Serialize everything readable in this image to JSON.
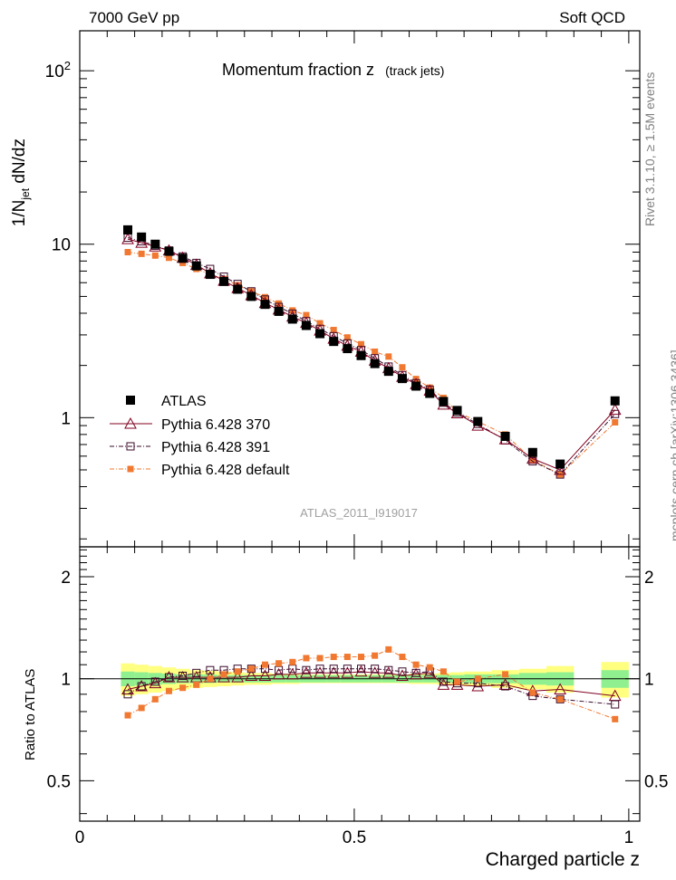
{
  "header": {
    "left": "7000 GeV pp",
    "right": "Soft QCD"
  },
  "side_labels": {
    "rivet": "Rivet 3.1.10, ≥ 1.5M events",
    "mcplots": "mcplots.cern.ch [arXiv:1306.3436]"
  },
  "chart_data": {
    "type": "scatter",
    "title": "Momentum fraction z",
    "subtitle": "(track jets)",
    "watermark": "ATLAS_2011_I919017",
    "xlabel": "Charged particle z",
    "ylabel_main": "1/N_jet dN/dz",
    "ylabel_ratio": "Ratio to ATLAS",
    "xlim": [
      0,
      1.02
    ],
    "ylim_main": [
      0.18,
      170
    ],
    "ylim_ratio": [
      0.38,
      2.45
    ],
    "yscale": "log",
    "x_ticks": [
      "0",
      "0.5",
      "1"
    ],
    "y_ticks_main": [
      "1",
      "10",
      "10^2"
    ],
    "y_ticks_ratio": [
      "0.5",
      "1",
      "2"
    ],
    "legend_position": "lower-left",
    "bins_x": [
      0.0875,
      0.1125,
      0.1375,
      0.1625,
      0.1875,
      0.2125,
      0.2375,
      0.2625,
      0.2875,
      0.3125,
      0.3375,
      0.3625,
      0.3875,
      0.4125,
      0.4375,
      0.4625,
      0.4875,
      0.5125,
      0.5375,
      0.5625,
      0.5875,
      0.6125,
      0.6375,
      0.6625,
      0.6875,
      0.725,
      0.775,
      0.825,
      0.875,
      0.975
    ],
    "band_edges": [
      0.075,
      0.1,
      0.125,
      0.15,
      0.175,
      0.2,
      0.225,
      0.25,
      0.275,
      0.3,
      0.325,
      0.35,
      0.375,
      0.4,
      0.425,
      0.45,
      0.475,
      0.5,
      0.525,
      0.55,
      0.575,
      0.6,
      0.625,
      0.65,
      0.675,
      0.7,
      0.75,
      0.8,
      0.85,
      0.9,
      0.95,
      1.0
    ],
    "band_green_half": [
      0.05,
      0.045,
      0.04,
      0.035,
      0.03,
      0.03,
      0.028,
      0.025,
      0.025,
      0.025,
      0.025,
      0.025,
      0.025,
      0.025,
      0.025,
      0.025,
      0.025,
      0.025,
      0.025,
      0.025,
      0.025,
      0.025,
      0.025,
      0.025,
      0.025,
      0.03,
      0.03,
      0.04,
      0.045,
      0.0,
      0.06
    ],
    "band_yellow_half": [
      0.11,
      0.1,
      0.09,
      0.08,
      0.07,
      0.06,
      0.055,
      0.05,
      0.045,
      0.04,
      0.04,
      0.035,
      0.035,
      0.03,
      0.03,
      0.03,
      0.03,
      0.03,
      0.03,
      0.03,
      0.03,
      0.035,
      0.035,
      0.04,
      0.045,
      0.05,
      0.06,
      0.07,
      0.09,
      0.0,
      0.12
    ],
    "series": [
      {
        "name": "ATLAS",
        "marker": "filled-square",
        "color": "#000000",
        "y": [
          12.1,
          11.0,
          10.0,
          9.1,
          8.3,
          7.5,
          6.7,
          6.1,
          5.5,
          5.0,
          4.5,
          4.1,
          3.7,
          3.4,
          3.05,
          2.75,
          2.5,
          2.28,
          2.05,
          1.85,
          1.68,
          1.52,
          1.38,
          1.24,
          1.1,
          0.95,
          0.78,
          0.63,
          0.54,
          1.25
        ]
      },
      {
        "name": "Pythia 6.428 370",
        "marker": "open-triangle",
        "color": "#800020",
        "line": "solid",
        "y": [
          10.7,
          10.2,
          9.7,
          9.2,
          8.35,
          7.6,
          6.8,
          6.15,
          5.58,
          5.08,
          4.58,
          4.2,
          3.82,
          3.52,
          3.18,
          2.85,
          2.6,
          2.4,
          2.13,
          1.93,
          1.72,
          1.56,
          1.43,
          1.19,
          1.06,
          0.9,
          0.75,
          0.58,
          0.5,
          1.11
        ]
      },
      {
        "name": "Pythia 6.428 391",
        "marker": "open-square",
        "color": "#3a0a2a",
        "line": "dash-dot",
        "y": [
          10.9,
          10.4,
          9.8,
          9.2,
          8.5,
          7.8,
          7.2,
          6.5,
          5.9,
          5.35,
          4.8,
          4.35,
          3.98,
          3.6,
          3.25,
          2.95,
          2.68,
          2.45,
          2.2,
          1.97,
          1.76,
          1.58,
          1.45,
          1.22,
          1.07,
          0.92,
          0.74,
          0.56,
          0.47,
          1.05
        ]
      },
      {
        "name": "Pythia 6.428 default",
        "marker": "small-filled-square",
        "color": "#f07830",
        "line": "dash-dot",
        "y": [
          9.0,
          8.8,
          8.6,
          8.35,
          7.8,
          7.2,
          6.7,
          6.3,
          5.8,
          5.35,
          4.95,
          4.55,
          4.15,
          3.9,
          3.5,
          3.2,
          2.9,
          2.65,
          2.4,
          2.25,
          1.95,
          1.67,
          1.49,
          1.3,
          1.08,
          0.95,
          0.8,
          0.57,
          0.47,
          0.94
        ]
      }
    ],
    "ratio_series": [
      {
        "name": "Pythia 6.428 370",
        "values": [
          0.93,
          0.95,
          0.97,
          1.01,
          1.01,
          1.01,
          1.01,
          1.01,
          1.01,
          1.02,
          1.02,
          1.03,
          1.03,
          1.04,
          1.04,
          1.04,
          1.04,
          1.05,
          1.04,
          1.04,
          1.02,
          1.03,
          1.04,
          0.96,
          0.96,
          0.95,
          0.96,
          0.92,
          0.93,
          0.89
        ]
      },
      {
        "name": "Pythia 6.428 391",
        "values": [
          0.9,
          0.95,
          0.98,
          1.01,
          1.02,
          1.04,
          1.06,
          1.06,
          1.07,
          1.07,
          1.07,
          1.06,
          1.07,
          1.06,
          1.07,
          1.07,
          1.07,
          1.07,
          1.07,
          1.06,
          1.05,
          1.04,
          1.05,
          0.98,
          0.97,
          0.97,
          0.95,
          0.89,
          0.87,
          0.84
        ]
      },
      {
        "name": "Pythia 6.428 default",
        "values": [
          0.78,
          0.82,
          0.87,
          0.92,
          0.94,
          0.96,
          1.0,
          1.03,
          1.05,
          1.07,
          1.1,
          1.11,
          1.12,
          1.15,
          1.15,
          1.16,
          1.16,
          1.16,
          1.17,
          1.22,
          1.16,
          1.1,
          1.08,
          1.05,
          0.98,
          1.0,
          1.03,
          0.91,
          0.87,
          0.76
        ]
      }
    ]
  }
}
